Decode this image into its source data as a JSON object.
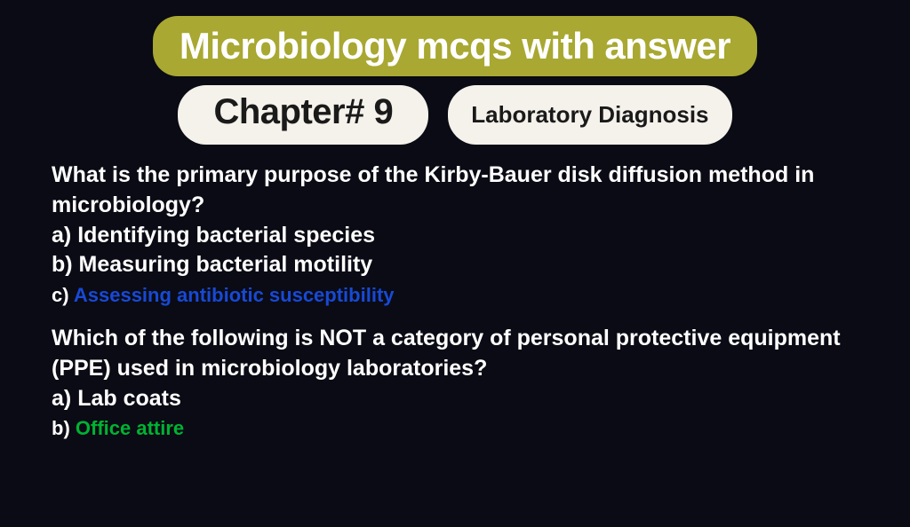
{
  "colors": {
    "background": "#0a0b14",
    "title_pill_bg": "#a8a832",
    "title_pill_text": "#ffffff",
    "sub_pill_bg": "#f5f1eb",
    "sub_pill_text": "#1a1a1a",
    "body_text": "#ffffff",
    "answer_blue": "#1849d6",
    "answer_green": "#00b233"
  },
  "typography": {
    "title_fontsize": 42,
    "chapter_fontsize": 40,
    "topic_fontsize": 26,
    "question_fontsize": 25,
    "option_small_fontsize": 22,
    "weight": 800
  },
  "header": {
    "title": "Microbiology mcqs with answer",
    "chapter": "Chapter# 9",
    "topic": "Laboratory Diagnosis"
  },
  "questions": [
    {
      "text": "What is the primary purpose of the Kirby-Bauer disk diffusion method in microbiology?",
      "options": [
        {
          "prefix": "a) ",
          "text": "Identifying bacterial species",
          "color": "white",
          "size": "normal"
        },
        {
          "prefix": "b) ",
          "text": "Measuring bacterial motility",
          "color": "white",
          "size": "normal"
        },
        {
          "prefix": "c) ",
          "text": "Assessing antibiotic susceptibility",
          "color": "blue",
          "size": "small"
        }
      ]
    },
    {
      "text": "Which of the following is NOT a category of personal protective equipment (PPE) used in microbiology laboratories?",
      "options": [
        {
          "prefix": "a) ",
          "text": "Lab coats",
          "color": "white",
          "size": "normal"
        },
        {
          "prefix": "b) ",
          "text": "Office attire",
          "color": "green",
          "size": "small"
        }
      ]
    }
  ]
}
